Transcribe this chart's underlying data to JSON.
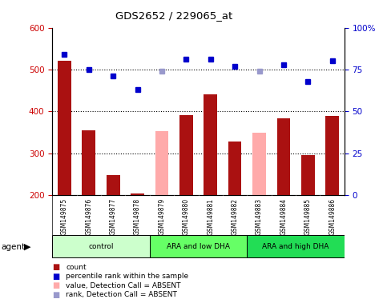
{
  "title": "GDS2652 / 229065_at",
  "samples": [
    "GSM149875",
    "GSM149876",
    "GSM149877",
    "GSM149878",
    "GSM149879",
    "GSM149880",
    "GSM149881",
    "GSM149882",
    "GSM149883",
    "GSM149884",
    "GSM149885",
    "GSM149886"
  ],
  "bar_values": [
    520,
    355,
    247,
    203,
    352,
    390,
    441,
    328,
    348,
    383,
    296,
    388
  ],
  "bar_absent": [
    false,
    false,
    false,
    false,
    true,
    false,
    false,
    false,
    true,
    false,
    false,
    false
  ],
  "dot_values": [
    84,
    75,
    71,
    63,
    74,
    81,
    81,
    77,
    74,
    78,
    68,
    80
  ],
  "dot_absent": [
    false,
    false,
    false,
    false,
    true,
    false,
    false,
    false,
    true,
    false,
    false,
    false
  ],
  "ylim_left": [
    200,
    600
  ],
  "ylim_right": [
    0,
    100
  ],
  "yticks_left": [
    200,
    300,
    400,
    500,
    600
  ],
  "yticks_right": [
    0,
    25,
    50,
    75,
    100
  ],
  "groups": [
    {
      "label": "control",
      "start": 0,
      "end": 3,
      "color": "#ccffcc"
    },
    {
      "label": "ARA and low DHA",
      "start": 4,
      "end": 7,
      "color": "#66ff66"
    },
    {
      "label": "ARA and high DHA",
      "start": 8,
      "end": 11,
      "color": "#22dd55"
    }
  ],
  "bar_color_present": "#aa1111",
  "bar_color_absent": "#ffaaaa",
  "dot_color_present": "#0000cc",
  "dot_color_absent": "#9999cc",
  "bar_width": 0.55,
  "background_color": "#ffffff",
  "tick_label_color_left": "#cc0000",
  "tick_label_color_right": "#0000cc",
  "xlabel_area_color": "#cccccc",
  "legend_items": [
    {
      "label": "count",
      "color": "#aa1111"
    },
    {
      "label": "percentile rank within the sample",
      "color": "#0000cc"
    },
    {
      "label": "value, Detection Call = ABSENT",
      "color": "#ffaaaa"
    },
    {
      "label": "rank, Detection Call = ABSENT",
      "color": "#9999cc"
    }
  ]
}
